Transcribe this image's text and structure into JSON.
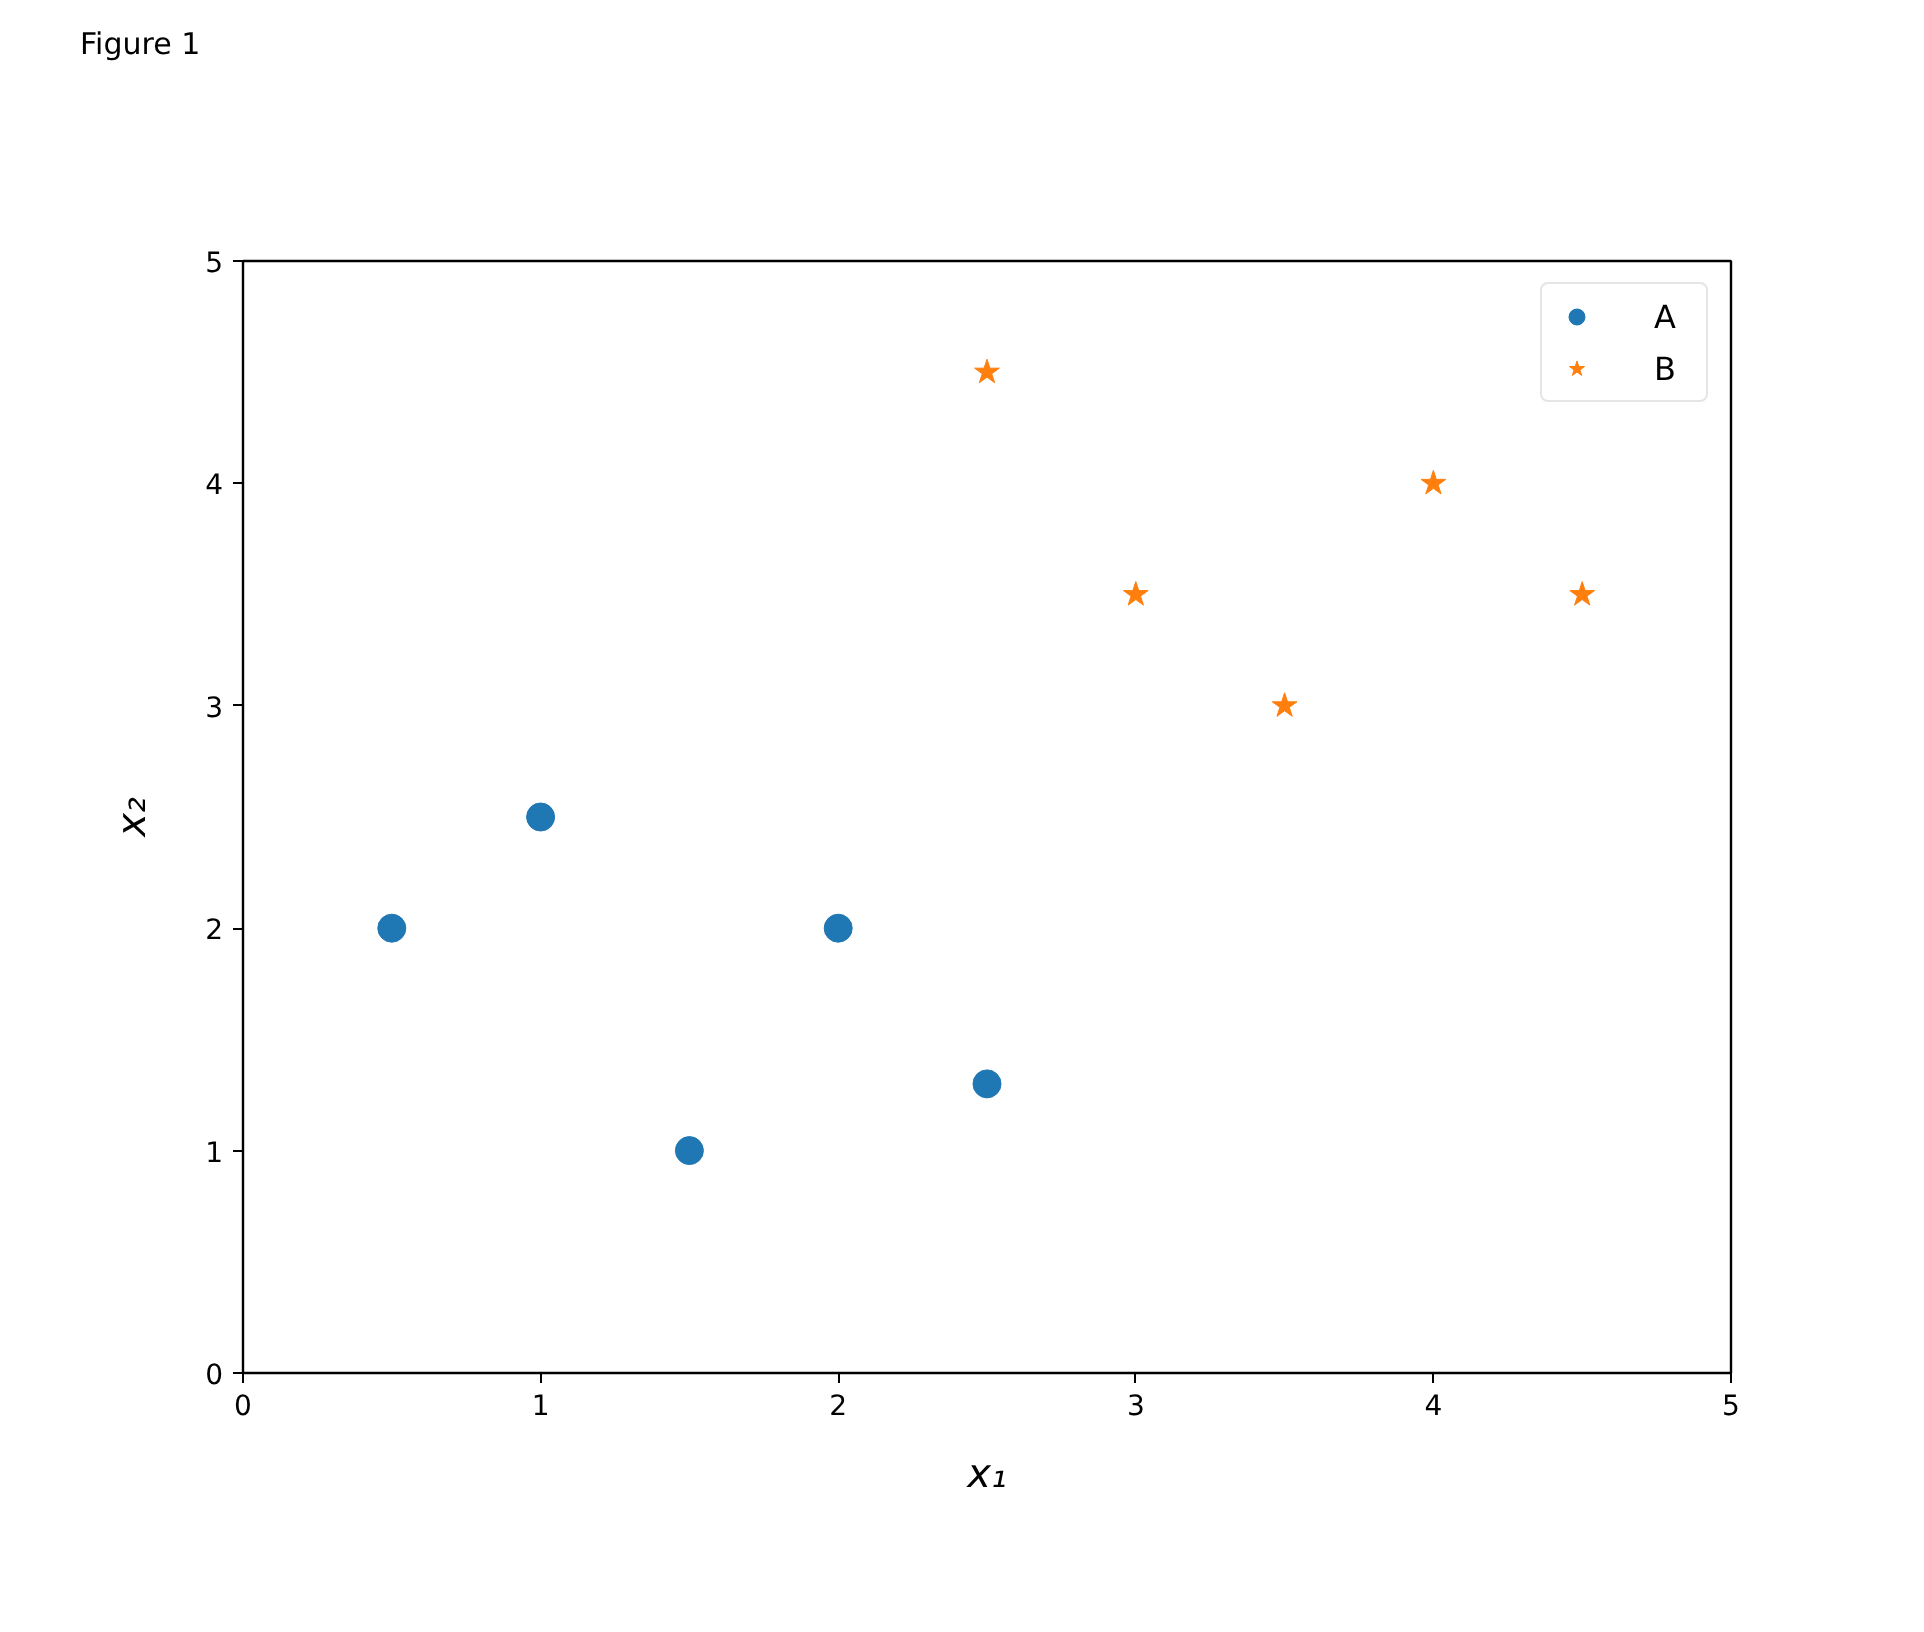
{
  "chart_data": {
    "type": "scatter",
    "annotations": [
      "Figure 1"
    ],
    "xlabel": "x₁",
    "ylabel": "x₂",
    "xlim": [
      0,
      5
    ],
    "ylim": [
      0,
      5
    ],
    "xticks": [
      0,
      1,
      2,
      3,
      4,
      5
    ],
    "yticks": [
      0,
      1,
      2,
      3,
      4,
      5
    ],
    "grid": false,
    "legend": "top right",
    "series": [
      {
        "name": "A",
        "color": "#1f77b4",
        "marker": "circle",
        "x": [
          0.5,
          1,
          1.5,
          2,
          2.5
        ],
        "values": [
          2,
          2.5,
          1,
          2,
          1.3
        ]
      },
      {
        "name": "B",
        "color": "#ff7f0e",
        "marker": "star",
        "x": [
          2.5,
          3,
          3.5,
          4,
          4.5
        ],
        "values": [
          4.5,
          3.5,
          3,
          4,
          3.5
        ]
      }
    ]
  }
}
